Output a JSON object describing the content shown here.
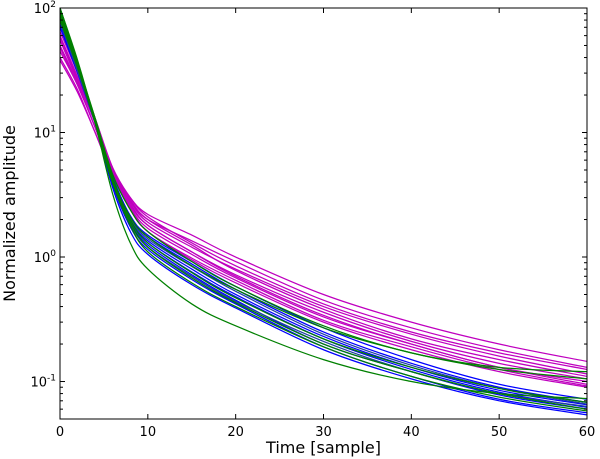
{
  "chart_data": {
    "type": "line",
    "title": "",
    "xlabel": "Time [sample]",
    "ylabel": "Normalized amplitude",
    "xlim": [
      0,
      60
    ],
    "ylim": [
      0.05,
      100
    ],
    "yscale": "log",
    "grid": false,
    "legend": "none",
    "x_ticks": [
      {
        "value": 0,
        "label": "0"
      },
      {
        "value": 10,
        "label": "10"
      },
      {
        "value": 20,
        "label": "20"
      },
      {
        "value": 30,
        "label": "30"
      },
      {
        "value": 40,
        "label": "40"
      },
      {
        "value": 50,
        "label": "50"
      },
      {
        "value": 60,
        "label": "60"
      }
    ],
    "y_ticks": [
      {
        "value": 0.1,
        "base": "10",
        "exp": "-1"
      },
      {
        "value": 1,
        "base": "10",
        "exp": "0"
      },
      {
        "value": 10,
        "base": "10",
        "exp": "1"
      },
      {
        "value": 100,
        "base": "10",
        "exp": "2"
      }
    ],
    "x": [
      0,
      2,
      4,
      6,
      8,
      10,
      15,
      20,
      30,
      40,
      50,
      60
    ],
    "series": [
      {
        "color": "#bf00bf",
        "values": [
          45,
          24,
          11,
          5.0,
          3.0,
          2.2,
          1.5,
          1.0,
          0.5,
          0.3,
          0.2,
          0.145
        ]
      },
      {
        "color": "#bf00bf",
        "values": [
          40,
          22,
          10,
          4.6,
          2.8,
          2.0,
          1.35,
          0.92,
          0.45,
          0.27,
          0.18,
          0.13
        ]
      },
      {
        "color": "#bf00bf",
        "values": [
          55,
          26,
          12,
          5.2,
          3.0,
          2.1,
          1.3,
          0.85,
          0.42,
          0.25,
          0.17,
          0.125
        ]
      },
      {
        "color": "#bf00bf",
        "values": [
          60,
          28,
          12,
          5.0,
          2.8,
          1.9,
          1.2,
          0.8,
          0.4,
          0.24,
          0.16,
          0.115
        ]
      },
      {
        "color": "#bf00bf",
        "values": [
          50,
          25,
          11,
          4.8,
          2.6,
          1.8,
          1.1,
          0.72,
          0.36,
          0.21,
          0.14,
          0.105
        ]
      },
      {
        "color": "#bf00bf",
        "values": [
          38,
          21,
          10,
          4.5,
          2.5,
          1.7,
          1.05,
          0.68,
          0.33,
          0.2,
          0.13,
          0.1
        ]
      },
      {
        "color": "#bf00bf",
        "values": [
          65,
          30,
          13,
          5.2,
          2.9,
          2.0,
          1.25,
          0.78,
          0.38,
          0.22,
          0.15,
          0.11
        ]
      },
      {
        "color": "#bf00bf",
        "values": [
          70,
          32,
          13,
          5.0,
          2.7,
          1.8,
          1.1,
          0.7,
          0.34,
          0.2,
          0.13,
          0.095
        ]
      },
      {
        "color": "#bf00bf",
        "values": [
          48,
          24,
          11,
          4.6,
          2.4,
          1.6,
          0.95,
          0.62,
          0.3,
          0.18,
          0.12,
          0.09
        ]
      },
      {
        "color": "#bf00bf",
        "values": [
          58,
          27,
          12,
          4.8,
          2.5,
          1.6,
          0.98,
          0.65,
          0.31,
          0.19,
          0.125,
          0.092
        ]
      },
      {
        "color": "#0000ff",
        "values": [
          80,
          32,
          12,
          4.2,
          2.0,
          1.35,
          0.8,
          0.5,
          0.23,
          0.13,
          0.085,
          0.065
        ]
      },
      {
        "color": "#0000ff",
        "values": [
          90,
          34,
          12,
          4.0,
          1.9,
          1.25,
          0.72,
          0.45,
          0.2,
          0.12,
          0.078,
          0.06
        ]
      },
      {
        "color": "#0000ff",
        "values": [
          75,
          31,
          12,
          4.3,
          2.1,
          1.45,
          0.88,
          0.55,
          0.25,
          0.14,
          0.09,
          0.068
        ]
      },
      {
        "color": "#0000ff",
        "values": [
          95,
          35,
          12,
          3.8,
          1.75,
          1.15,
          0.66,
          0.42,
          0.19,
          0.11,
          0.072,
          0.056
        ]
      },
      {
        "color": "#0000ff",
        "values": [
          85,
          33,
          12,
          4.1,
          1.95,
          1.3,
          0.76,
          0.48,
          0.22,
          0.125,
          0.082,
          0.062
        ]
      },
      {
        "color": "#0000ff",
        "values": [
          70,
          30,
          12,
          4.4,
          2.15,
          1.5,
          0.92,
          0.58,
          0.27,
          0.15,
          0.095,
          0.072
        ]
      },
      {
        "color": "#0000ff",
        "values": [
          100,
          36,
          12,
          3.6,
          1.6,
          1.05,
          0.6,
          0.39,
          0.18,
          0.105,
          0.07,
          0.054
        ]
      },
      {
        "color": "#1f3fa0",
        "values": [
          88,
          33,
          12,
          4.0,
          1.85,
          1.2,
          0.7,
          0.44,
          0.21,
          0.12,
          0.08,
          0.063
        ]
      },
      {
        "color": "#1f3fa0",
        "values": [
          78,
          31,
          12,
          4.2,
          2.05,
          1.4,
          0.84,
          0.53,
          0.24,
          0.135,
          0.088,
          0.066
        ]
      },
      {
        "color": "#008000",
        "values": [
          100,
          38,
          12,
          3.2,
          1.3,
          0.8,
          0.42,
          0.28,
          0.15,
          0.1,
          0.08,
          0.073
        ]
      },
      {
        "color": "#008000",
        "values": [
          95,
          36,
          13,
          4.2,
          2.1,
          1.45,
          0.85,
          0.55,
          0.27,
          0.17,
          0.125,
          0.105
        ]
      },
      {
        "color": "#008000",
        "values": [
          90,
          35,
          13,
          4.6,
          2.4,
          1.6,
          0.92,
          0.58,
          0.28,
          0.17,
          0.13,
          0.12
        ]
      },
      {
        "color": "#008000",
        "values": [
          85,
          34,
          12,
          4.0,
          1.9,
          1.2,
          0.68,
          0.43,
          0.2,
          0.12,
          0.08,
          0.06
        ]
      },
      {
        "color": "#008000",
        "values": [
          100,
          37,
          12,
          3.9,
          1.8,
          1.1,
          0.62,
          0.4,
          0.19,
          0.11,
          0.075,
          0.058
        ]
      },
      {
        "color": "#008000",
        "values": [
          80,
          33,
          12,
          4.3,
          2.0,
          1.3,
          0.75,
          0.47,
          0.22,
          0.13,
          0.088,
          0.068
        ]
      }
    ]
  }
}
